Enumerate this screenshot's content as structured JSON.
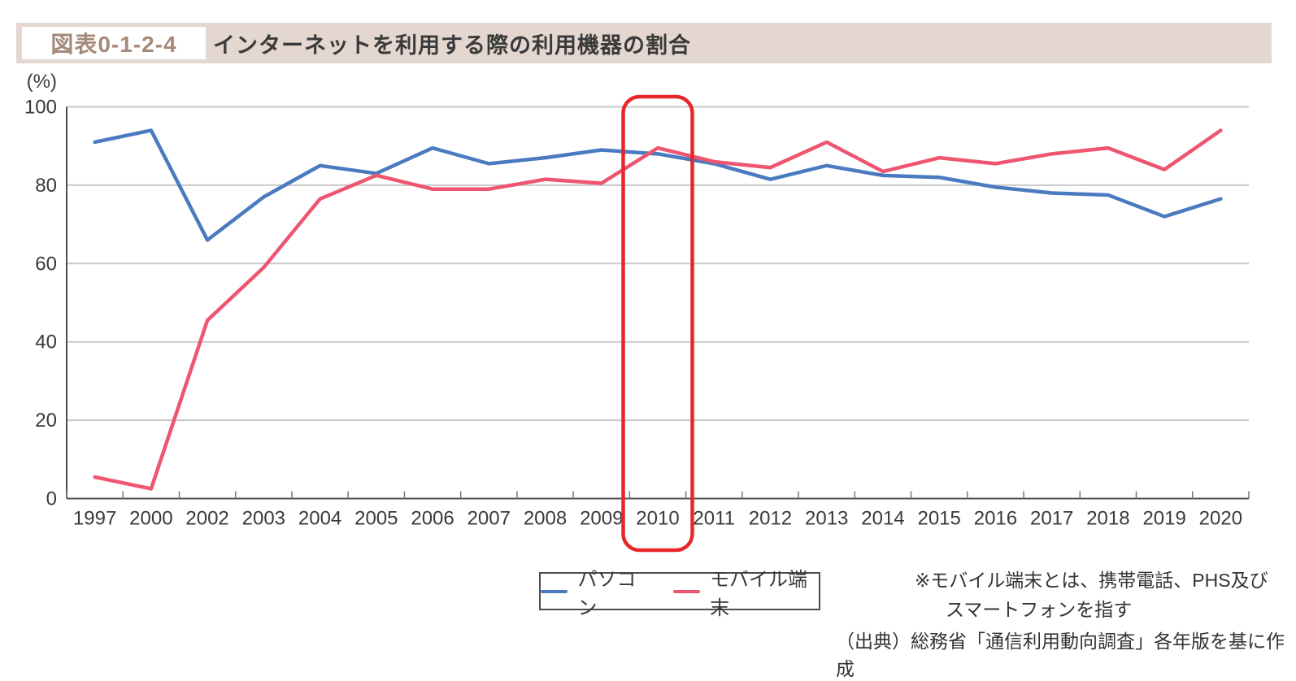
{
  "header": {
    "figure_label": "図表0-1-2-4",
    "title": "インターネットを利用する際の利用機器の割合"
  },
  "chart_data": {
    "type": "line",
    "title": "インターネットを利用する際の利用機器の割合",
    "unit_label": "(%)",
    "categories": [
      "1997",
      "2000",
      "2002",
      "2003",
      "2004",
      "2005",
      "2006",
      "2007",
      "2008",
      "2009",
      "2010",
      "2011",
      "2012",
      "2013",
      "2014",
      "2015",
      "2016",
      "2017",
      "2018",
      "2019",
      "2020"
    ],
    "series": [
      {
        "name": "パソコン",
        "color": "#4a7ac0",
        "values": [
          91,
          94,
          66,
          77,
          85,
          83,
          89.5,
          85.5,
          87,
          89,
          88,
          85.5,
          81.5,
          85,
          82.5,
          82,
          79.5,
          78,
          77.5,
          72,
          76.5
        ]
      },
      {
        "name": "モバイル端末",
        "color": "#ee5570",
        "values": [
          5.5,
          2.5,
          45.5,
          59,
          76.5,
          82.5,
          79,
          79,
          81.5,
          80.5,
          89.5,
          86,
          84.5,
          91,
          83.5,
          87,
          85.5,
          88,
          89.5,
          84,
          94
        ]
      }
    ],
    "ylim": [
      0,
      100
    ],
    "yticks": [
      0,
      20,
      40,
      60,
      80,
      100
    ],
    "grid": true,
    "legend_position": "bottom-center",
    "highlight": {
      "category": "2010",
      "color": "#e8262b"
    }
  },
  "colors": {
    "header_bar": "#e3d7d0",
    "figure_label_text": "#a5897b",
    "gridline": "#c9c9c9",
    "axis": "#4d4d4d",
    "pc_line": "#4a7ac0",
    "mobile_line": "#ee5570",
    "highlight_box": "#e8262b"
  },
  "legend": {
    "items": [
      {
        "label": "パソコン",
        "color": "#4a7ac0"
      },
      {
        "label": "モバイル端末",
        "color": "#ee5570"
      }
    ]
  },
  "notes": {
    "line1": "※モバイル端末とは、携帯電話、PHS及び",
    "line2": "スマートフォンを指す"
  },
  "source": "（出典）総務省「通信利用動向調査」各年版を基に作成"
}
